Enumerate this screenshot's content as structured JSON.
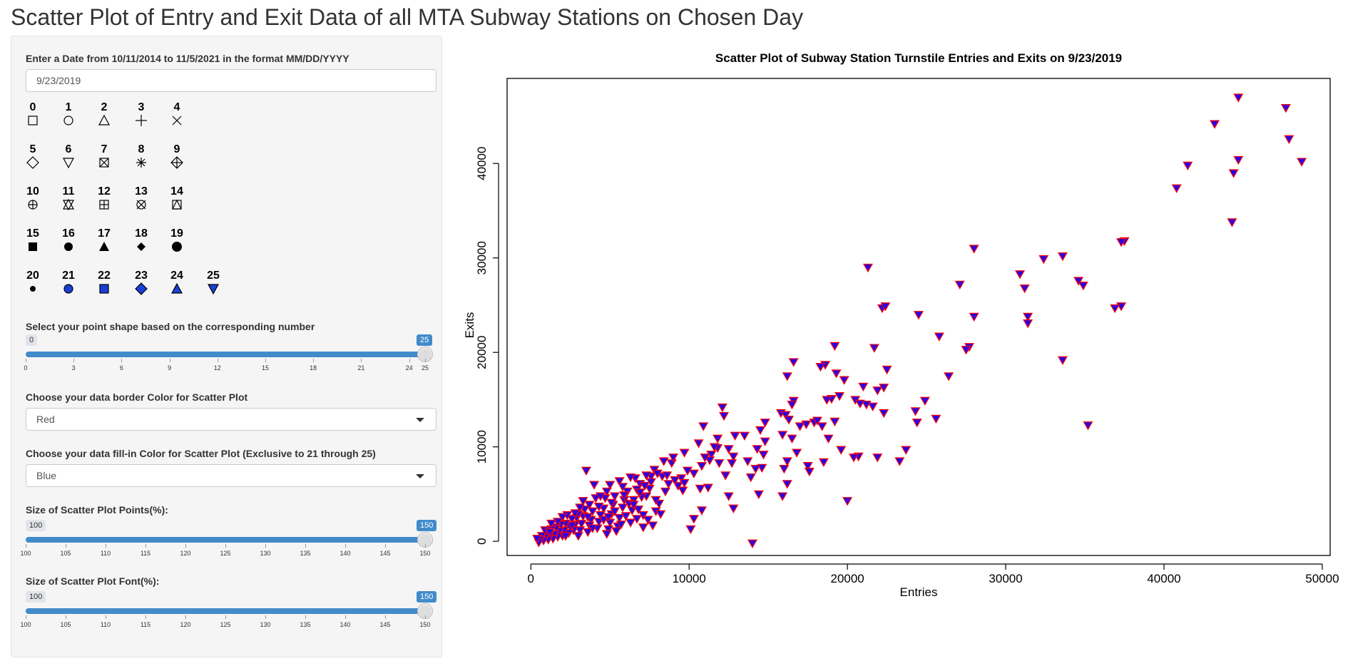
{
  "page": {
    "title": "Scatter Plot of Entry and Exit Data of all MTA Subway Stations on Chosen Day"
  },
  "sidebar": {
    "date_label": "Enter a Date from 10/11/2014 to 11/5/2021 in the format MM/DD/YYYY",
    "date_value": "9/23/2019",
    "pch_legend": [
      "0",
      "1",
      "2",
      "3",
      "4",
      "5",
      "6",
      "7",
      "8",
      "9",
      "10",
      "11",
      "12",
      "13",
      "14",
      "15",
      "16",
      "17",
      "18",
      "19",
      "20",
      "21",
      "22",
      "23",
      "24",
      "25"
    ],
    "shape_slider": {
      "label": "Select your point shape based on the corresponding number",
      "min": 0,
      "max": 25,
      "value": 25,
      "min_label": "0",
      "value_label": "25",
      "ticks": [
        "0",
        "3",
        "6",
        "9",
        "12",
        "15",
        "18",
        "21",
        "24",
        "25"
      ]
    },
    "border_color": {
      "label": "Choose your data border Color for Scatter Plot",
      "value": "Red"
    },
    "fill_color": {
      "label": "Choose your data fill-in Color for Scatter Plot (Exclusive to 21 through 25)",
      "value": "Blue"
    },
    "size_slider": {
      "label": "Size of Scatter Plot Points(%):",
      "min": 100,
      "max": 150,
      "value": 150,
      "min_label": "100",
      "value_label": "150",
      "ticks": [
        "100",
        "105",
        "110",
        "115",
        "120",
        "125",
        "130",
        "135",
        "140",
        "145",
        "150"
      ]
    },
    "font_slider": {
      "label": "Size of Scatter Plot Font(%):",
      "min": 100,
      "max": 150,
      "value": 150,
      "min_label": "100",
      "value_label": "150",
      "ticks": [
        "100",
        "105",
        "110",
        "115",
        "120",
        "125",
        "130",
        "135",
        "140",
        "145",
        "150"
      ]
    },
    "legend_fill": "#1a3fd6"
  },
  "chart_data": {
    "type": "scatter",
    "title": "Scatter Plot of Subway Station Turnstile Entries and Exits on 9/23/2019",
    "xlabel": "Entries",
    "ylabel": "Exits",
    "xlim": [
      -1500,
      50500
    ],
    "ylim": [
      -1500,
      49000
    ],
    "xticks": [
      0,
      10000,
      20000,
      30000,
      40000,
      50000
    ],
    "yticks": [
      0,
      10000,
      20000,
      30000,
      40000
    ],
    "grid": false,
    "marker": "down-triangle",
    "border_color": "#ff0000",
    "fill_color": "#2a00e6",
    "points": [
      [
        44700,
        47000
      ],
      [
        47700,
        45900
      ],
      [
        47900,
        42600
      ],
      [
        48700,
        40200
      ],
      [
        44700,
        40400
      ],
      [
        44400,
        39000
      ],
      [
        43200,
        44200
      ],
      [
        41500,
        39800
      ],
      [
        40800,
        37400
      ],
      [
        44300,
        33800
      ],
      [
        37500,
        31800
      ],
      [
        37300,
        31700
      ],
      [
        37300,
        24900
      ],
      [
        36900,
        24700
      ],
      [
        33600,
        30200
      ],
      [
        32400,
        29900
      ],
      [
        30900,
        28300
      ],
      [
        31200,
        26800
      ],
      [
        31400,
        23800
      ],
      [
        31400,
        23100
      ],
      [
        34600,
        27600
      ],
      [
        34900,
        27100
      ],
      [
        33600,
        19200
      ],
      [
        35200,
        12300
      ],
      [
        28000,
        31000
      ],
      [
        27100,
        27200
      ],
      [
        28000,
        23800
      ],
      [
        27700,
        20600
      ],
      [
        27500,
        20300
      ],
      [
        26400,
        17500
      ],
      [
        25800,
        21700
      ],
      [
        25600,
        13000
      ],
      [
        24900,
        14900
      ],
      [
        24400,
        12600
      ],
      [
        24500,
        24000
      ],
      [
        24300,
        13800
      ],
      [
        23700,
        9700
      ],
      [
        23300,
        8500
      ],
      [
        21300,
        29000
      ],
      [
        22200,
        24700
      ],
      [
        22400,
        24900
      ],
      [
        21700,
        20500
      ],
      [
        22500,
        18200
      ],
      [
        22300,
        16300
      ],
      [
        21900,
        16000
      ],
      [
        21600,
        14300
      ],
      [
        21200,
        14500
      ],
      [
        22300,
        13600
      ],
      [
        21900,
        8900
      ],
      [
        21000,
        16400
      ],
      [
        20500,
        15000
      ],
      [
        20800,
        14600
      ],
      [
        20700,
        9000
      ],
      [
        20400,
        8900
      ],
      [
        20000,
        4300
      ],
      [
        19200,
        20700
      ],
      [
        19300,
        17800
      ],
      [
        19800,
        17100
      ],
      [
        19000,
        15100
      ],
      [
        19500,
        15400
      ],
      [
        19200,
        12700
      ],
      [
        19600,
        9700
      ],
      [
        18600,
        18700
      ],
      [
        18300,
        18500
      ],
      [
        18700,
        15000
      ],
      [
        17900,
        12600
      ],
      [
        18100,
        12800
      ],
      [
        17400,
        12400
      ],
      [
        17500,
        8000
      ],
      [
        17600,
        7400
      ],
      [
        18400,
        12200
      ],
      [
        18800,
        10900
      ],
      [
        18500,
        8400
      ],
      [
        16600,
        19000
      ],
      [
        16200,
        17500
      ],
      [
        15800,
        13600
      ],
      [
        16100,
        13400
      ],
      [
        16600,
        14900
      ],
      [
        16300,
        12900
      ],
      [
        15900,
        11300
      ],
      [
        16500,
        10900
      ],
      [
        16500,
        14500
      ],
      [
        17000,
        12200
      ],
      [
        16800,
        9400
      ],
      [
        16200,
        8500
      ],
      [
        16000,
        7700
      ],
      [
        16200,
        6100
      ],
      [
        15900,
        4800
      ],
      [
        14800,
        12600
      ],
      [
        14500,
        11800
      ],
      [
        14800,
        10600
      ],
      [
        14300,
        9800
      ],
      [
        14200,
        7700
      ],
      [
        14600,
        7800
      ],
      [
        14400,
        5000
      ],
      [
        14000,
        -200
      ],
      [
        13900,
        6800
      ],
      [
        14700,
        9200
      ],
      [
        13700,
        8500
      ],
      [
        12800,
        9000
      ],
      [
        13500,
        11200
      ],
      [
        12100,
        14200
      ],
      [
        12200,
        13300
      ],
      [
        11800,
        10900
      ],
      [
        12900,
        11200
      ],
      [
        12500,
        9800
      ],
      [
        12700,
        8300
      ],
      [
        12300,
        7000
      ],
      [
        12500,
        4800
      ],
      [
        12800,
        3500
      ],
      [
        11900,
        8300
      ],
      [
        11800,
        9900
      ],
      [
        11600,
        10000
      ],
      [
        11400,
        9200
      ],
      [
        11300,
        8600
      ],
      [
        11200,
        5700
      ],
      [
        11000,
        8900
      ],
      [
        10900,
        12200
      ],
      [
        10600,
        10400
      ],
      [
        10300,
        7200
      ],
      [
        10700,
        5600
      ],
      [
        10800,
        3300
      ],
      [
        10300,
        2400
      ],
      [
        10100,
        1300
      ],
      [
        9700,
        9400
      ],
      [
        9500,
        6700
      ],
      [
        9300,
        5900
      ],
      [
        9600,
        5400
      ],
      [
        8900,
        8300
      ],
      [
        8700,
        6100
      ],
      [
        8400,
        8500
      ],
      [
        8300,
        6900
      ],
      [
        8100,
        4000
      ],
      [
        7900,
        3200
      ],
      [
        7800,
        7600
      ],
      [
        7600,
        6900
      ],
      [
        7500,
        5600
      ],
      [
        7300,
        4800
      ],
      [
        7100,
        2800
      ],
      [
        6900,
        6100
      ],
      [
        6700,
        5500
      ],
      [
        6500,
        4400
      ],
      [
        6400,
        3300
      ],
      [
        6300,
        2000
      ],
      [
        6100,
        5300
      ],
      [
        5900,
        4400
      ],
      [
        5800,
        3600
      ],
      [
        5600,
        2500
      ],
      [
        5500,
        1600
      ],
      [
        5300,
        4800
      ],
      [
        5200,
        3900
      ],
      [
        5100,
        2900
      ],
      [
        5000,
        2000
      ],
      [
        4900,
        1300
      ],
      [
        4700,
        4600
      ],
      [
        4600,
        3500
      ],
      [
        4400,
        2800
      ],
      [
        4300,
        2100
      ],
      [
        4200,
        1400
      ],
      [
        4100,
        4600
      ],
      [
        3900,
        3200
      ],
      [
        3800,
        2300
      ],
      [
        3700,
        1700
      ],
      [
        3600,
        1000
      ],
      [
        3500,
        7500
      ],
      [
        3400,
        3400
      ],
      [
        3300,
        2700
      ],
      [
        3200,
        1900
      ],
      [
        3100,
        1200
      ],
      [
        3000,
        600
      ],
      [
        2900,
        2500
      ],
      [
        2800,
        1800
      ],
      [
        2700,
        1200
      ],
      [
        2600,
        2400
      ],
      [
        2500,
        1500
      ],
      [
        2400,
        900
      ],
      [
        2200,
        1900
      ],
      [
        2100,
        1200
      ],
      [
        2000,
        600
      ],
      [
        1900,
        1800
      ],
      [
        1800,
        1100
      ],
      [
        1700,
        500
      ],
      [
        1600,
        1500
      ],
      [
        1500,
        800
      ],
      [
        1400,
        300
      ],
      [
        1300,
        1300
      ],
      [
        1200,
        700
      ],
      [
        1100,
        200
      ],
      [
        1000,
        900
      ],
      [
        900,
        400
      ],
      [
        800,
        100
      ],
      [
        700,
        600
      ],
      [
        600,
        200
      ],
      [
        500,
        -100
      ],
      [
        400,
        300
      ],
      [
        4000,
        6000
      ],
      [
        5800,
        5800
      ],
      [
        6600,
        6700
      ],
      [
        7200,
        5900
      ],
      [
        8600,
        7000
      ],
      [
        9100,
        6500
      ],
      [
        9900,
        7500
      ],
      [
        10800,
        8000
      ],
      [
        6200,
        4000
      ],
      [
        6800,
        3400
      ],
      [
        7400,
        2300
      ],
      [
        7700,
        1700
      ],
      [
        8200,
        2900
      ],
      [
        5400,
        1100
      ],
      [
        4800,
        800
      ],
      [
        3900,
        1400
      ],
      [
        4600,
        2300
      ],
      [
        5300,
        3200
      ],
      [
        6000,
        2700
      ],
      [
        7000,
        4700
      ],
      [
        7900,
        4400
      ],
      [
        8500,
        5300
      ],
      [
        3000,
        2900
      ],
      [
        2300,
        2800
      ],
      [
        1700,
        2100
      ],
      [
        2600,
        1700
      ],
      [
        3600,
        2600
      ],
      [
        4300,
        3700
      ],
      [
        5100,
        4100
      ],
      [
        5900,
        4900
      ],
      [
        6900,
        5200
      ],
      [
        7600,
        6300
      ],
      [
        8000,
        7200
      ],
      [
        4800,
        5300
      ],
      [
        5600,
        6400
      ],
      [
        3300,
        4300
      ],
      [
        2800,
        3000
      ],
      [
        2000,
        2600
      ],
      [
        1300,
        1900
      ],
      [
        900,
        1200
      ],
      [
        4400,
        4800
      ],
      [
        6300,
        6800
      ],
      [
        7300,
        7000
      ],
      [
        9000,
        8900
      ],
      [
        9700,
        6200
      ],
      [
        3700,
        3900
      ],
      [
        4900,
        2600
      ],
      [
        5700,
        1800
      ],
      [
        6500,
        3900
      ],
      [
        7100,
        1500
      ],
      [
        3100,
        3600
      ],
      [
        2200,
        600
      ],
      [
        1200,
        1000
      ],
      [
        6700,
        2400
      ],
      [
        5000,
        6000
      ]
    ]
  }
}
